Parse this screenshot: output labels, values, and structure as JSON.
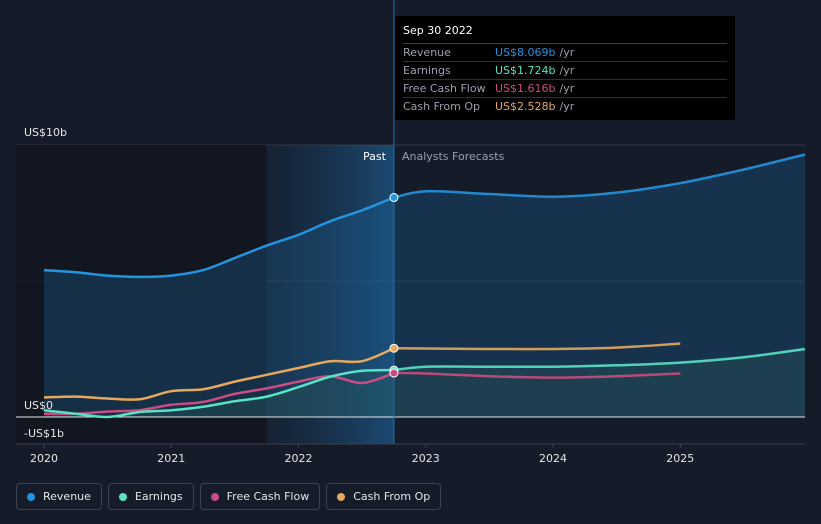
{
  "chart_data": {
    "type": "area",
    "title": "",
    "y_axis": {
      "top_label": "US$10b",
      "zero_label": "US$0",
      "bottom_label": "-US$1b",
      "ylim": [
        -1,
        10
      ]
    },
    "x_ticks": [
      {
        "year": 2020,
        "label": "2020"
      },
      {
        "year": 2021,
        "label": "2021"
      },
      {
        "year": 2022,
        "label": "2022"
      },
      {
        "year": 2023,
        "label": "2023"
      },
      {
        "year": 2024,
        "label": "2024"
      },
      {
        "year": 2025,
        "label": "2025"
      }
    ],
    "xlim": [
      2019.78,
      2025.98
    ],
    "divider_year": 2022.75,
    "shade_start_year": 2021.75,
    "past_label": "Past",
    "forecast_label": "Analysts Forecasts",
    "series": [
      {
        "name": "Revenue",
        "color": "#2394df",
        "past": [
          [
            2020.0,
            5.4
          ],
          [
            2020.25,
            5.32
          ],
          [
            2020.5,
            5.2
          ],
          [
            2020.75,
            5.15
          ],
          [
            2021.0,
            5.2
          ],
          [
            2021.25,
            5.4
          ],
          [
            2021.5,
            5.85
          ],
          [
            2021.75,
            6.3
          ],
          [
            2022.0,
            6.7
          ],
          [
            2022.25,
            7.2
          ],
          [
            2022.5,
            7.6
          ],
          [
            2022.75,
            8.069
          ]
        ],
        "forecast": [
          [
            2022.75,
            8.069
          ],
          [
            2023.0,
            8.3
          ],
          [
            2023.5,
            8.2
          ],
          [
            2024.0,
            8.1
          ],
          [
            2024.5,
            8.25
          ],
          [
            2025.0,
            8.6
          ],
          [
            2025.5,
            9.1
          ],
          [
            2025.98,
            9.65
          ]
        ]
      },
      {
        "name": "Earnings",
        "color": "#58e3c4",
        "past": [
          [
            2020.0,
            0.25
          ],
          [
            2020.25,
            0.12
          ],
          [
            2020.5,
            0.0
          ],
          [
            2020.75,
            0.18
          ],
          [
            2021.0,
            0.25
          ],
          [
            2021.25,
            0.38
          ],
          [
            2021.5,
            0.58
          ],
          [
            2021.75,
            0.75
          ],
          [
            2022.0,
            1.1
          ],
          [
            2022.25,
            1.48
          ],
          [
            2022.5,
            1.7
          ],
          [
            2022.75,
            1.724
          ]
        ],
        "forecast": [
          [
            2022.75,
            1.724
          ],
          [
            2023.0,
            1.85
          ],
          [
            2023.5,
            1.85
          ],
          [
            2024.0,
            1.85
          ],
          [
            2024.5,
            1.9
          ],
          [
            2025.0,
            2.0
          ],
          [
            2025.5,
            2.2
          ],
          [
            2025.98,
            2.5
          ]
        ]
      },
      {
        "name": "Free Cash Flow",
        "color": "#c94c82",
        "past": [
          [
            2020.0,
            0.12
          ],
          [
            2020.25,
            0.12
          ],
          [
            2020.5,
            0.2
          ],
          [
            2020.75,
            0.25
          ],
          [
            2021.0,
            0.45
          ],
          [
            2021.25,
            0.55
          ],
          [
            2021.5,
            0.85
          ],
          [
            2021.75,
            1.05
          ],
          [
            2022.0,
            1.3
          ],
          [
            2022.25,
            1.5
          ],
          [
            2022.5,
            1.25
          ],
          [
            2022.75,
            1.616
          ]
        ],
        "forecast": [
          [
            2022.75,
            1.616
          ],
          [
            2023.0,
            1.6
          ],
          [
            2023.5,
            1.5
          ],
          [
            2024.0,
            1.45
          ],
          [
            2024.5,
            1.5
          ],
          [
            2025.0,
            1.6
          ]
        ]
      },
      {
        "name": "Cash From Op",
        "color": "#e6a85f",
        "past": [
          [
            2020.0,
            0.72
          ],
          [
            2020.25,
            0.75
          ],
          [
            2020.5,
            0.68
          ],
          [
            2020.75,
            0.65
          ],
          [
            2021.0,
            0.95
          ],
          [
            2021.25,
            1.02
          ],
          [
            2021.5,
            1.3
          ],
          [
            2021.75,
            1.55
          ],
          [
            2022.0,
            1.8
          ],
          [
            2022.25,
            2.05
          ],
          [
            2022.5,
            2.05
          ],
          [
            2022.75,
            2.528
          ]
        ],
        "forecast": [
          [
            2022.75,
            2.528
          ],
          [
            2023.0,
            2.52
          ],
          [
            2023.5,
            2.5
          ],
          [
            2024.0,
            2.5
          ],
          [
            2024.5,
            2.55
          ],
          [
            2025.0,
            2.7
          ]
        ]
      }
    ]
  },
  "tooltip": {
    "date": "Sep 30 2022",
    "rows": [
      {
        "label": "Revenue",
        "value": "US$8.069b",
        "unit": "/yr",
        "color": "#2394df"
      },
      {
        "label": "Earnings",
        "value": "US$1.724b",
        "unit": "/yr",
        "color": "#58e3c4"
      },
      {
        "label": "Free Cash Flow",
        "value": "US$1.616b",
        "unit": "/yr",
        "color": "#c94c82"
      },
      {
        "label": "Cash From Op",
        "value": "US$2.528b",
        "unit": "/yr",
        "color": "#e6a85f"
      }
    ]
  },
  "legend": [
    {
      "label": "Revenue",
      "color": "#2394df"
    },
    {
      "label": "Earnings",
      "color": "#58e3c4"
    },
    {
      "label": "Free Cash Flow",
      "color": "#c94c82"
    },
    {
      "label": "Cash From Op",
      "color": "#e6a85f"
    }
  ]
}
